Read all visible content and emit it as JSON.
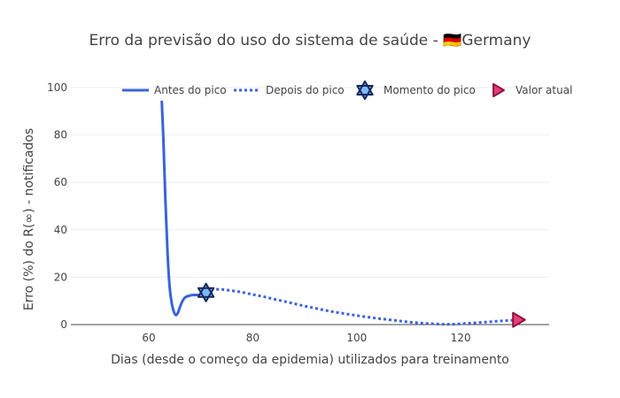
{
  "chart_data": {
    "type": "line",
    "title": "Erro da previsão do uso do sistema de saúde - 🇩🇪Germany",
    "xlabel": "Dias (desde o começo da epidemia) utilizados para treinamento",
    "ylabel": "Erro (%) do R(∞) - notificados",
    "xlim": [
      45,
      137
    ],
    "ylim": [
      0,
      100
    ],
    "xticks": [
      60,
      80,
      100,
      120
    ],
    "yticks": [
      0,
      20,
      40,
      60,
      80,
      100
    ],
    "grid": "horizontal",
    "legend_position": "top-right",
    "series": [
      {
        "name": "Antes do pico",
        "style": "solid",
        "color": "#3b63d9",
        "x": [
          62.5,
          62.8,
          63.2,
          63.6,
          64.0,
          64.4,
          64.8,
          65.2,
          65.6,
          66.0,
          66.5,
          67.0,
          68.0,
          69.0,
          70.0,
          71.0
        ],
        "y": [
          94,
          78,
          52,
          30,
          16,
          9,
          5.5,
          4,
          5,
          7.5,
          10,
          11.5,
          12.3,
          12.5,
          12.5,
          13
        ]
      },
      {
        "name": "Depois do pico",
        "style": "dotted",
        "color": "#3b63d9",
        "x": [
          71,
          72,
          74,
          76,
          78,
          80,
          82,
          84,
          86,
          88,
          90,
          92,
          94,
          96,
          98,
          100,
          102,
          104,
          106,
          108,
          110,
          112,
          114,
          116,
          117.5,
          119,
          121,
          123,
          125,
          127,
          129,
          131
        ],
        "y": [
          14,
          14.8,
          14.8,
          14.3,
          13.6,
          12.7,
          11.8,
          10.8,
          9.8,
          8.8,
          7.8,
          6.9,
          6.0,
          5.2,
          4.5,
          3.8,
          3.2,
          2.6,
          2.1,
          1.6,
          1.1,
          0.7,
          0.4,
          0.2,
          0.1,
          0.2,
          0.5,
          0.8,
          1.1,
          1.4,
          1.7,
          2.0
        ]
      }
    ],
    "markers": [
      {
        "name": "Momento do pico",
        "symbol": "star-hexagram",
        "x": 71,
        "y": 13.5,
        "fill": "#7fb8f5",
        "stroke": "#12285c"
      },
      {
        "name": "Valor atual",
        "symbol": "triangle-right",
        "x": 131,
        "y": 2,
        "fill": "#ea3d7a",
        "stroke": "#8e1243"
      }
    ]
  }
}
